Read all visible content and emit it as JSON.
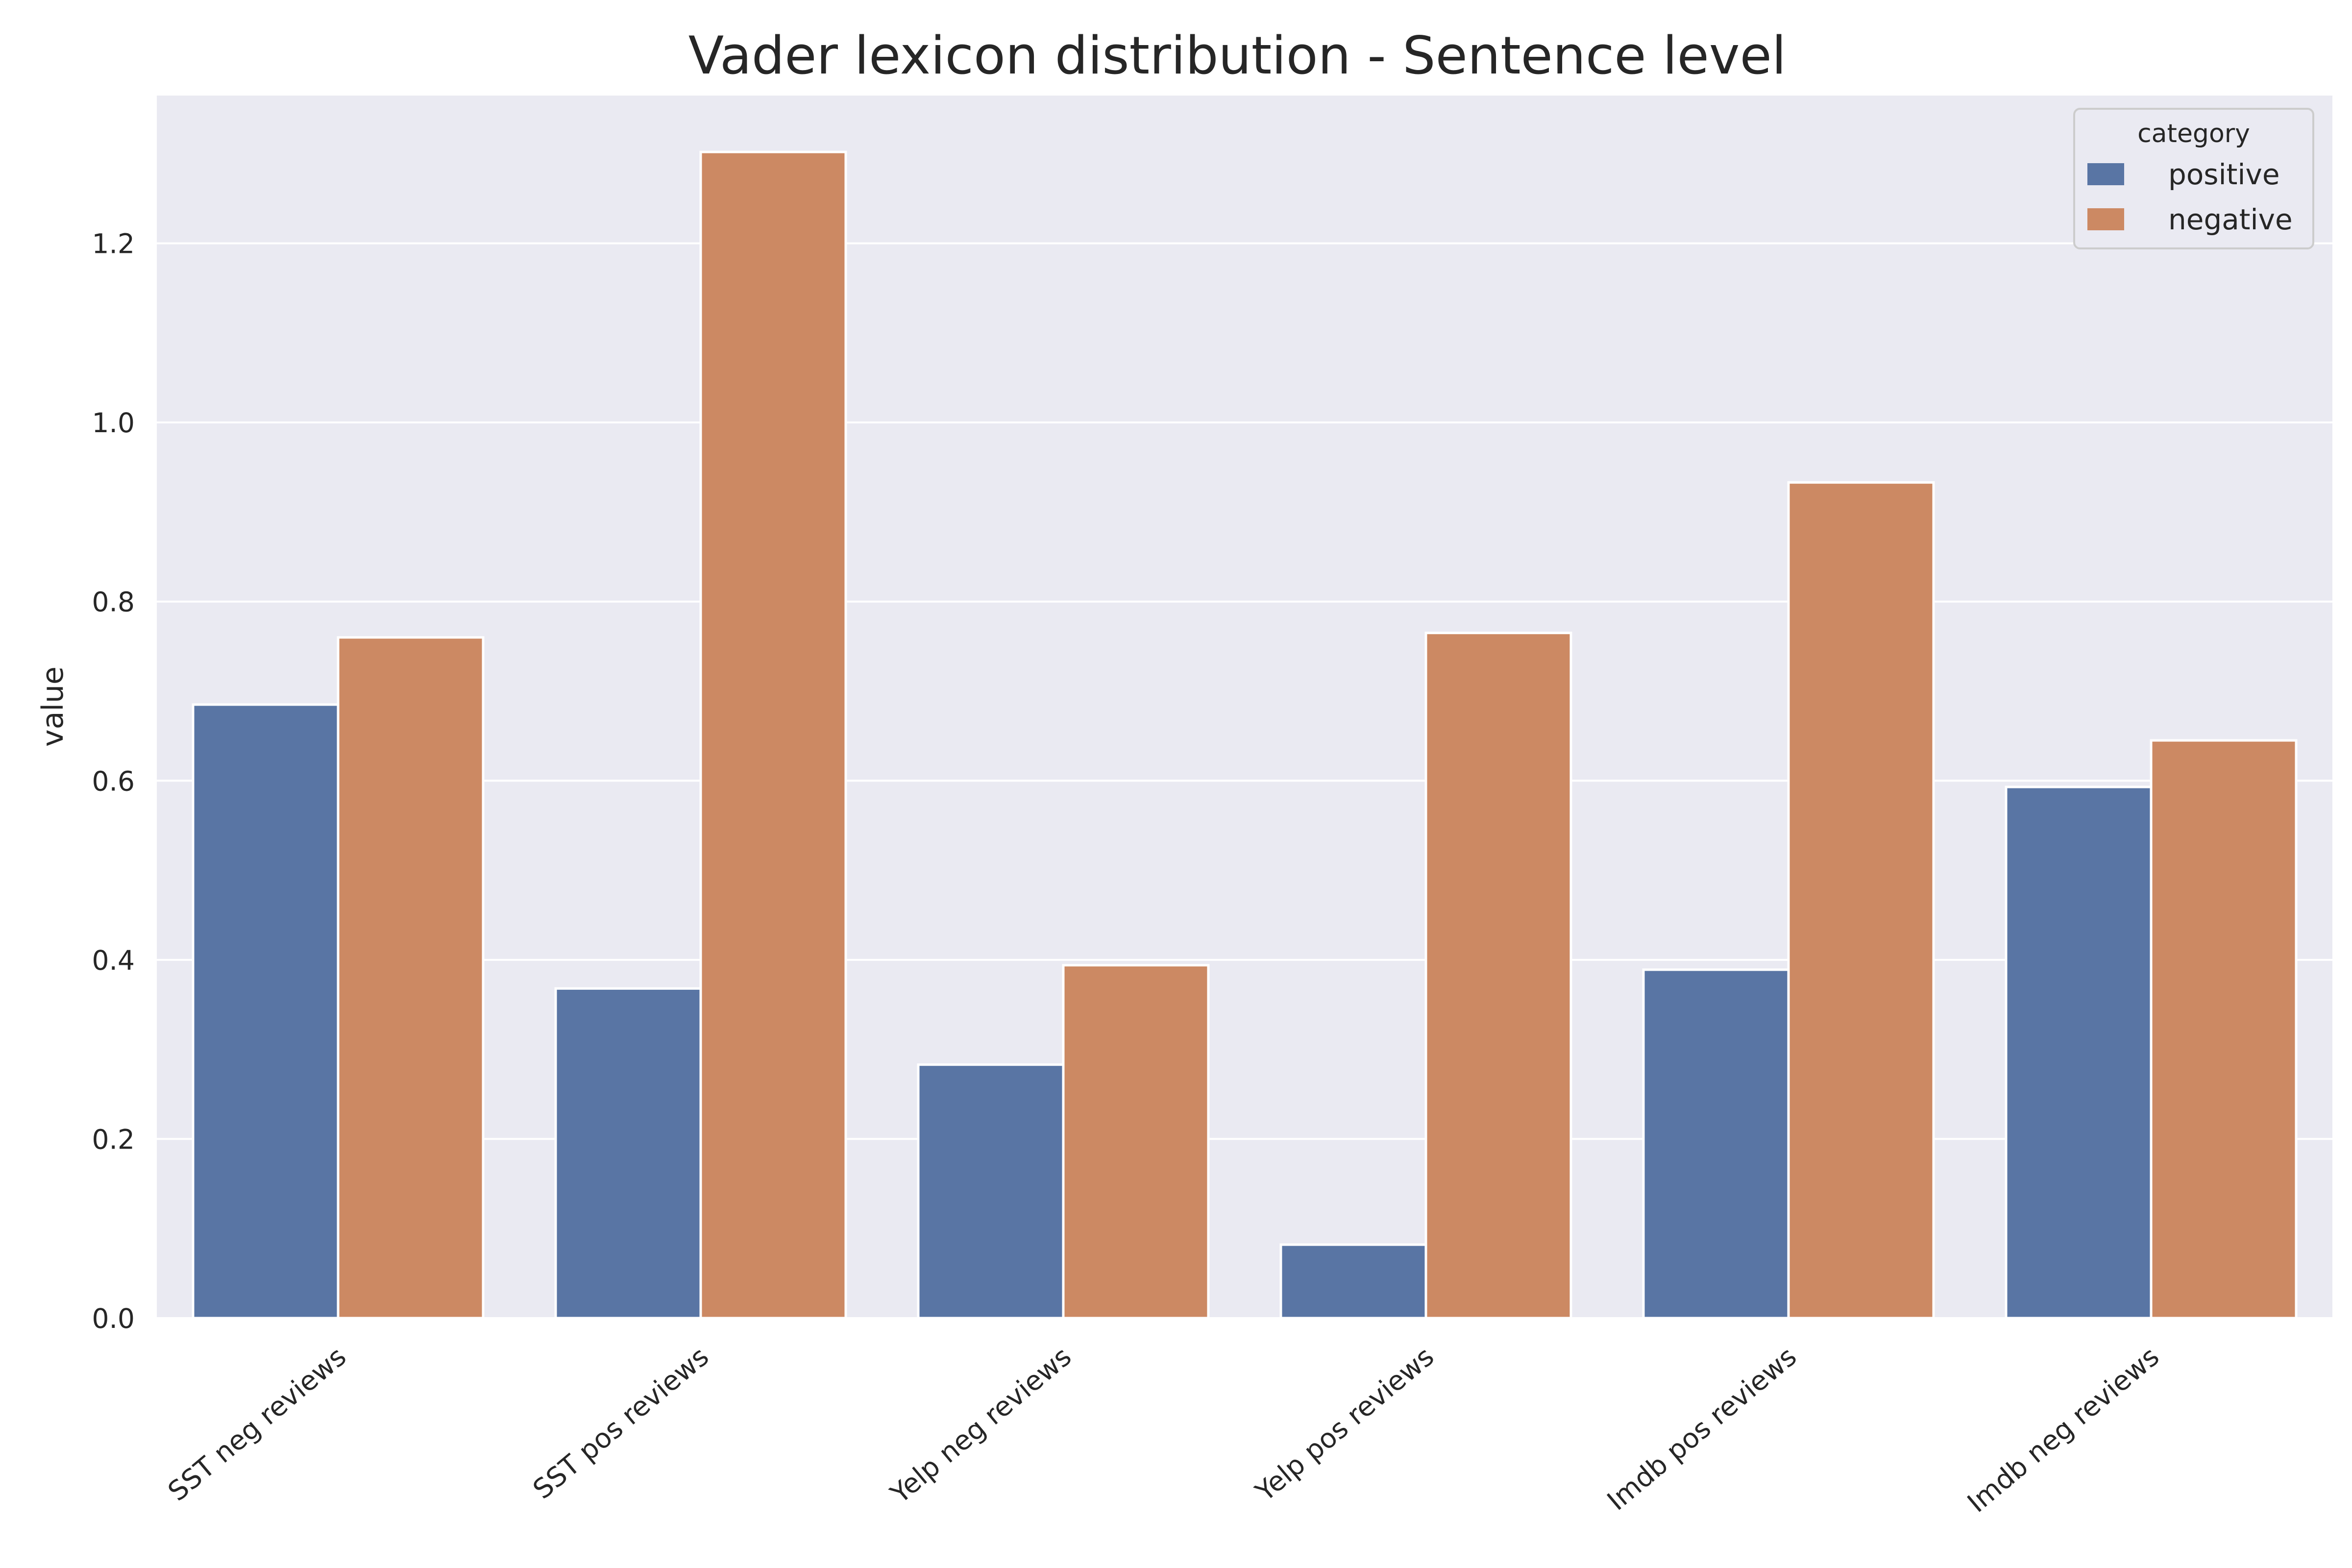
{
  "chart_data": {
    "type": "bar",
    "title": "Vader lexicon distribution - Sentence level",
    "xlabel": "",
    "ylabel": "value",
    "ylim": [
      0,
      1.365
    ],
    "yticks": [
      0.0,
      0.2,
      0.4,
      0.6,
      0.8,
      1.0,
      1.2
    ],
    "categories": [
      "SST neg reviews",
      "SST pos reviews",
      "Yelp neg reviews",
      "Yelp pos reviews",
      "Imdb pos reviews",
      "Imdb neg reviews"
    ],
    "series": [
      {
        "name": "positive",
        "color": "#5975a4",
        "values": [
          0.685,
          0.368,
          0.283,
          0.082,
          0.389,
          0.593
        ]
      },
      {
        "name": "negative",
        "color": "#cc8963",
        "values": [
          0.76,
          1.302,
          0.394,
          0.765,
          0.933,
          0.645
        ]
      }
    ],
    "legend": {
      "title": "category",
      "placement": "top-right"
    },
    "grid": true,
    "background_color": "#eaeaf2",
    "grid_color": "#ffffff"
  }
}
